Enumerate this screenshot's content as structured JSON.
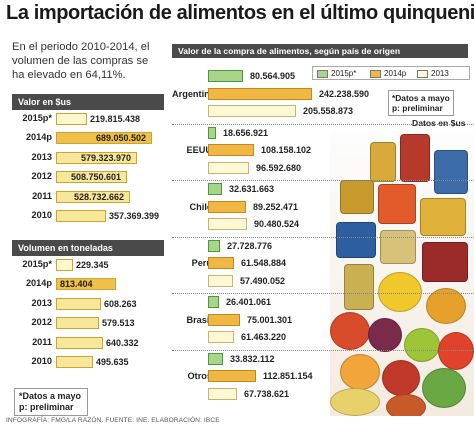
{
  "title": "La importación de alimentos en el último quinquenio",
  "intro": "En el periodo 2010-2014, el volumen de las compras se ha elevado en 64,11%.",
  "source": "INFOGRAFÍA: FMG/LA RAZÓN. FUENTE: INE. ELABORACIÓN: IBCE",
  "valor": {
    "heading": "Valor en $us",
    "rows": [
      {
        "year": "2015p*",
        "value_label": "219.815.438",
        "value": 219815438
      },
      {
        "year": "2014p",
        "value_label": "689.050.502",
        "value": 689050502
      },
      {
        "year": "2013",
        "value_label": "579.323.970",
        "value": 579323970
      },
      {
        "year": "2012",
        "value_label": "508.750.601",
        "value": 508750601
      },
      {
        "year": "2011",
        "value_label": "528.732.662",
        "value": 528732662
      },
      {
        "year": "2010",
        "value_label": "357.369.399",
        "value": 357369399
      }
    ]
  },
  "volumen": {
    "heading": "Volumen en toneladas",
    "rows": [
      {
        "year": "2015p*",
        "value_label": "229.345",
        "value": 229345
      },
      {
        "year": "2014p",
        "value_label": "813.404",
        "value": 813404
      },
      {
        "year": "2013",
        "value_label": "608.263",
        "value": 608263
      },
      {
        "year": "2012",
        "value_label": "579.513",
        "value": 579513
      },
      {
        "year": "2011",
        "value_label": "640.332",
        "value": 640332
      },
      {
        "year": "2010",
        "value_label": "495.635",
        "value": 495635
      }
    ]
  },
  "note": "*Datos a mayo p: preliminar",
  "note_line1": "*Datos a mayo",
  "note_line2": "p: preliminar",
  "right": {
    "heading": "Valor de la compra de alimentos, según país de origen",
    "units": "Datos en $us",
    "legend": [
      "2015p*",
      "2014p",
      "2013"
    ]
  },
  "colors": {
    "s2015": "#a8d48b",
    "s2014": "#f0b743",
    "s2013": "#fff8d4",
    "header": "#4a4a4a"
  },
  "chart_data": [
    {
      "type": "bar",
      "title": "Valor en $us",
      "categories": [
        "2015p*",
        "2014p",
        "2013",
        "2012",
        "2011",
        "2010"
      ],
      "values": [
        219815438,
        689050502,
        579323970,
        508750601,
        528732662,
        357369399
      ]
    },
    {
      "type": "bar",
      "title": "Volumen en toneladas",
      "categories": [
        "2015p*",
        "2014p",
        "2013",
        "2012",
        "2011",
        "2010"
      ],
      "values": [
        229345,
        813404,
        608263,
        579513,
        640332,
        495635
      ]
    },
    {
      "type": "bar",
      "title": "Valor de la compra de alimentos, según país de origen",
      "categories": [
        "Argentina",
        "EEUU",
        "Chile",
        "Perú",
        "Brasil",
        "Otros"
      ],
      "series": [
        {
          "name": "2015p*",
          "values": [
            80564905,
            18656921,
            32631663,
            27728776,
            26401061,
            33832112
          ],
          "labels": [
            "80.564.905",
            "18.656.921",
            "32.631.663",
            "27.728.776",
            "26.401.061",
            "33.832.112"
          ]
        },
        {
          "name": "2014p",
          "values": [
            242238590,
            108158102,
            89252471,
            61548884,
            75001301,
            112851154
          ],
          "labels": [
            "242.238.590",
            "108.158.102",
            "89.252.471",
            "61.548.884",
            "75.001.301",
            "112.851.154"
          ]
        },
        {
          "name": "2013",
          "values": [
            205558873,
            96592680,
            90480524,
            57490052,
            61463220,
            67738621
          ],
          "labels": [
            "205.558.873",
            "96.592.680",
            "90.480.524",
            "57.490.052",
            "61.463.220",
            "67.738.621"
          ]
        }
      ]
    }
  ]
}
